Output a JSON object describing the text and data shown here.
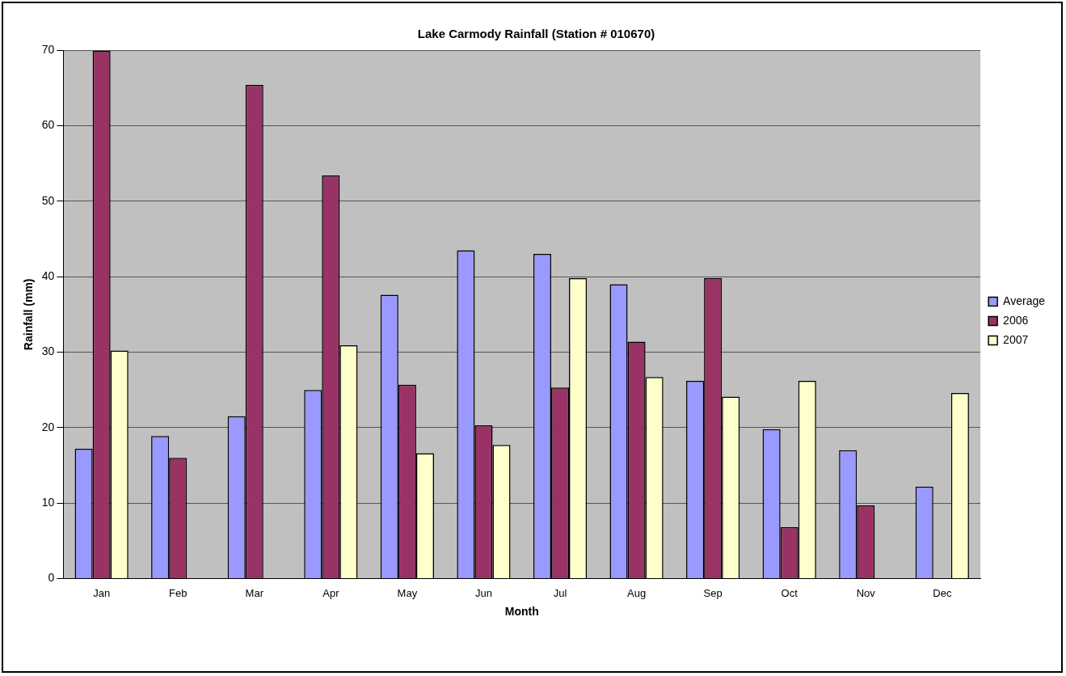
{
  "chart_data": {
    "type": "bar",
    "title": "Lake Carmody Rainfall (Station # 010670)",
    "xlabel": "Month",
    "ylabel": "Rainfall (mm)",
    "categories": [
      "Jan",
      "Feb",
      "Mar",
      "Apr",
      "May",
      "Jun",
      "Jul",
      "Aug",
      "Sep",
      "Oct",
      "Nov",
      "Dec"
    ],
    "series": [
      {
        "name": "Average",
        "color": "#9999ff",
        "values": [
          17.2,
          18.9,
          21.5,
          25.0,
          37.6,
          43.5,
          43.0,
          39.0,
          26.2,
          19.8,
          17.0,
          12.2
        ]
      },
      {
        "name": "2006",
        "color": "#993366",
        "values": [
          69.9,
          16.0,
          65.4,
          53.4,
          25.7,
          20.3,
          25.3,
          31.4,
          39.8,
          6.8,
          9.7,
          null
        ]
      },
      {
        "name": "2007",
        "color": "#ffffcc",
        "values": [
          30.2,
          null,
          null,
          30.9,
          16.6,
          17.7,
          39.8,
          26.7,
          24.1,
          26.2,
          0,
          24.6
        ]
      }
    ],
    "ylim": [
      0,
      70
    ],
    "yticks": [
      0,
      10,
      20,
      30,
      40,
      50,
      60,
      70
    ],
    "grid": "y",
    "legend": "right"
  }
}
